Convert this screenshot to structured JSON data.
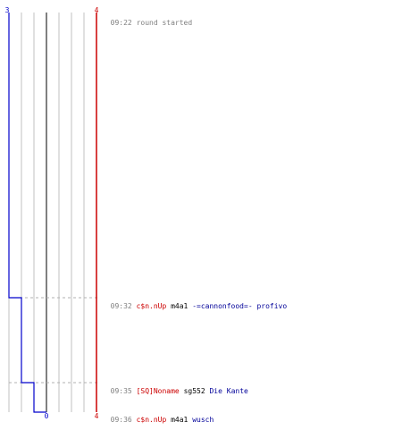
{
  "score": {
    "blue_start": "3",
    "blue_end": "0",
    "red_start": "4",
    "red_end": "4"
  },
  "timeline": {
    "blue_steps": [
      3,
      3,
      2,
      1,
      0
    ],
    "red_steps": [
      4,
      4,
      4,
      4,
      4
    ]
  },
  "events": [
    {
      "time": "09:22",
      "message": "round started"
    },
    {
      "time": "09:32",
      "killer": "c$n.nUp",
      "weapon": "m4a1",
      "victim": "-=cannonfood=- profivo"
    },
    {
      "time": "09:35",
      "killer": "[SQ]Noname",
      "weapon": "sg552",
      "victim": "Die Kante"
    },
    {
      "time": "09:36",
      "killer": "c$n.nUp",
      "weapon": "m4a1",
      "victim": "wusch"
    }
  ],
  "colors": {
    "blue_team": "#0000cc",
    "red_team": "#cc0000",
    "grid": "#c0c0c0",
    "center_line": "#808080",
    "dashed": "#b0b0b0"
  }
}
